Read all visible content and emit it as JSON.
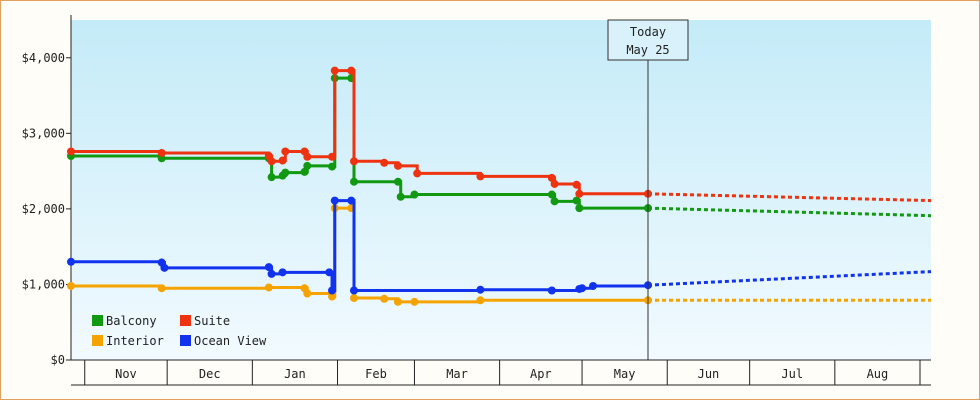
{
  "chart_data": {
    "type": "line",
    "x_range": [
      "2024-10-27",
      "2025-09-05"
    ],
    "ylim": [
      0,
      4500
    ],
    "y_ticks": [
      {
        "value": 0,
        "label": "$0"
      },
      {
        "value": 1000,
        "label": "$1,000"
      },
      {
        "value": 2000,
        "label": "$2,000"
      },
      {
        "value": 3000,
        "label": "$3,000"
      },
      {
        "value": 4000,
        "label": "$4,000"
      }
    ],
    "x_tick_labels": [
      "Nov",
      "Dec",
      "Jan",
      "Feb",
      "Mar",
      "Apr",
      "May",
      "Jun",
      "Jul",
      "Aug"
    ],
    "today": {
      "date": "2025-05-25",
      "line1": "Today",
      "line2": "May 25"
    },
    "legend_position": "bottom-left",
    "background_gradient": [
      "#c4ebf8",
      "#f2faff"
    ],
    "series": [
      {
        "name": "Balcony",
        "color": "#119911",
        "points": [
          [
            "2024-10-27",
            2700
          ],
          [
            "2024-11-29",
            2670
          ],
          [
            "2025-01-07",
            2670
          ],
          [
            "2025-01-08",
            2420
          ],
          [
            "2025-01-12",
            2440
          ],
          [
            "2025-01-13",
            2480
          ],
          [
            "2025-01-20",
            2490
          ],
          [
            "2025-01-21",
            2570
          ],
          [
            "2025-01-30",
            2560
          ],
          [
            "2025-01-31",
            3730
          ],
          [
            "2025-02-06",
            3730
          ],
          [
            "2025-02-07",
            2360
          ],
          [
            "2025-02-23",
            2360
          ],
          [
            "2025-02-24",
            2160
          ],
          [
            "2025-03-01",
            2190
          ],
          [
            "2025-04-20",
            2190
          ],
          [
            "2025-04-21",
            2100
          ],
          [
            "2025-04-29",
            2110
          ],
          [
            "2025-04-30",
            2010
          ],
          [
            "2025-05-25",
            2010
          ]
        ],
        "forecast": [
          [
            "2025-05-25",
            2010
          ],
          [
            "2025-09-05",
            1910
          ]
        ]
      },
      {
        "name": "Suite",
        "color": "#ee3311",
        "points": [
          [
            "2024-10-27",
            2760
          ],
          [
            "2024-11-29",
            2740
          ],
          [
            "2025-01-07",
            2700
          ],
          [
            "2025-01-08",
            2630
          ],
          [
            "2025-01-12",
            2640
          ],
          [
            "2025-01-13",
            2760
          ],
          [
            "2025-01-20",
            2760
          ],
          [
            "2025-01-21",
            2690
          ],
          [
            "2025-01-30",
            2690
          ],
          [
            "2025-01-31",
            3830
          ],
          [
            "2025-02-06",
            3830
          ],
          [
            "2025-02-07",
            2630
          ],
          [
            "2025-02-18",
            2610
          ],
          [
            "2025-02-23",
            2570
          ],
          [
            "2025-03-02",
            2470
          ],
          [
            "2025-03-25",
            2430
          ],
          [
            "2025-04-20",
            2410
          ],
          [
            "2025-04-21",
            2330
          ],
          [
            "2025-04-29",
            2320
          ],
          [
            "2025-04-30",
            2200
          ],
          [
            "2025-05-25",
            2200
          ]
        ],
        "forecast": [
          [
            "2025-05-25",
            2200
          ],
          [
            "2025-09-05",
            2110
          ]
        ]
      },
      {
        "name": "Interior",
        "color": "#f5a300",
        "points": [
          [
            "2024-10-27",
            980
          ],
          [
            "2024-11-29",
            950
          ],
          [
            "2025-01-07",
            960
          ],
          [
            "2025-01-20",
            950
          ],
          [
            "2025-01-21",
            880
          ],
          [
            "2025-01-30",
            840
          ],
          [
            "2025-01-31",
            2010
          ],
          [
            "2025-02-06",
            2010
          ],
          [
            "2025-02-07",
            820
          ],
          [
            "2025-02-18",
            810
          ],
          [
            "2025-02-23",
            770
          ],
          [
            "2025-03-01",
            770
          ],
          [
            "2025-03-25",
            790
          ],
          [
            "2025-05-25",
            790
          ]
        ],
        "forecast": [
          [
            "2025-05-25",
            790
          ],
          [
            "2025-09-05",
            790
          ]
        ]
      },
      {
        "name": "Ocean View",
        "color": "#1133ee",
        "points": [
          [
            "2024-10-27",
            1300
          ],
          [
            "2024-11-29",
            1290
          ],
          [
            "2024-11-30",
            1220
          ],
          [
            "2025-01-07",
            1230
          ],
          [
            "2025-01-08",
            1140
          ],
          [
            "2025-01-12",
            1160
          ],
          [
            "2025-01-29",
            1160
          ],
          [
            "2025-01-30",
            920
          ],
          [
            "2025-01-31",
            2110
          ],
          [
            "2025-02-06",
            2110
          ],
          [
            "2025-02-07",
            920
          ],
          [
            "2025-03-25",
            930
          ],
          [
            "2025-04-20",
            920
          ],
          [
            "2025-04-30",
            940
          ],
          [
            "2025-05-01",
            950
          ],
          [
            "2025-05-05",
            980
          ],
          [
            "2025-05-25",
            990
          ]
        ],
        "forecast": [
          [
            "2025-05-25",
            990
          ],
          [
            "2025-09-05",
            1170
          ]
        ]
      }
    ]
  }
}
